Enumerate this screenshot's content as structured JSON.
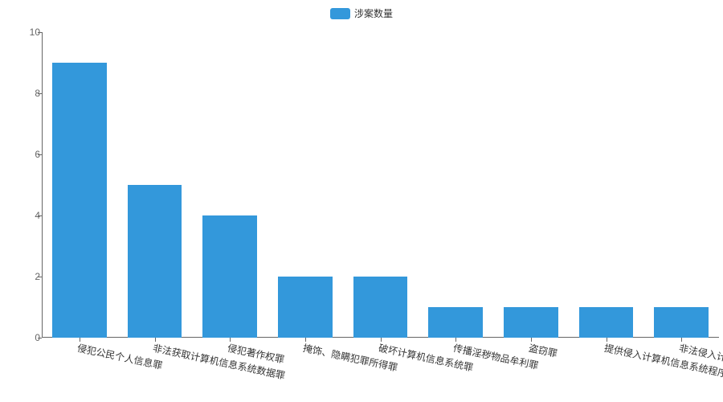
{
  "chart": {
    "type": "bar",
    "legend": {
      "label": "涉案数量",
      "color": "#3398db"
    },
    "background_color": "#ffffff",
    "axis_color": "#666666",
    "label_color": "#333333",
    "label_fontsize": 12,
    "y": {
      "min": 0,
      "max": 10,
      "step": 2,
      "ticks": [
        0,
        2,
        4,
        6,
        8,
        10
      ]
    },
    "bar_color": "#3398db",
    "bar_width": 0.72,
    "x_label_rotation_deg": 12,
    "categories": [
      "侵犯公民个人信息罪",
      "非法获取计算机信息系统数据罪",
      "侵犯著作权罪",
      "掩饰、隐瞒犯罪所得罪",
      "破坏计算机信息系统罪",
      "传播淫秽物品牟利罪",
      "盗窃罪",
      "提供侵入计算机信息系统程序罪",
      "非法侵入计算机信息系统罪"
    ],
    "values": [
      9,
      5,
      4,
      2,
      2,
      1,
      1,
      1,
      1
    ]
  }
}
